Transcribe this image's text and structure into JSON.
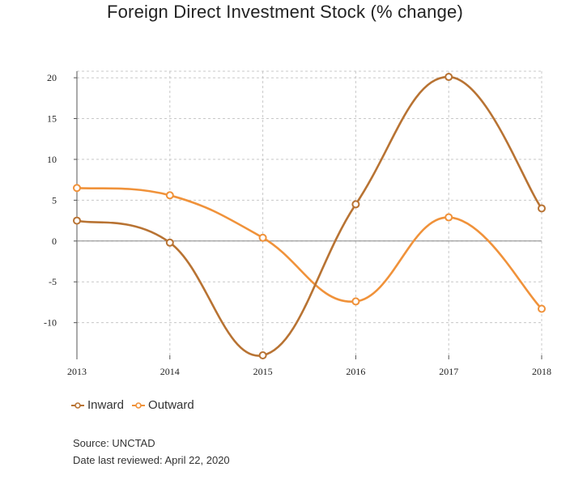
{
  "chart_data": {
    "type": "line",
    "title": "Foreign Direct Investment Stock (% change)",
    "xlabel": "",
    "ylabel": "",
    "categories": [
      "2013",
      "2014",
      "2015",
      "2016",
      "2017",
      "2018"
    ],
    "ylim": [
      -14,
      20.8
    ],
    "yticks": [
      20,
      15,
      10,
      5,
      0,
      -5,
      -10
    ],
    "grid": true,
    "legend_position": "bottom-left",
    "series": [
      {
        "name": "Inward",
        "color": "#b87333",
        "values": [
          2.5,
          -0.2,
          -14,
          4.5,
          20.1,
          4
        ]
      },
      {
        "name": "Outward",
        "color": "#f0923a",
        "values": [
          6.5,
          5.6,
          0.4,
          -7.4,
          2.9,
          -8.3
        ]
      }
    ]
  },
  "footer": {
    "source": "Source: UNCTAD",
    "reviewed": "Date last reviewed: April 22, 2020"
  }
}
